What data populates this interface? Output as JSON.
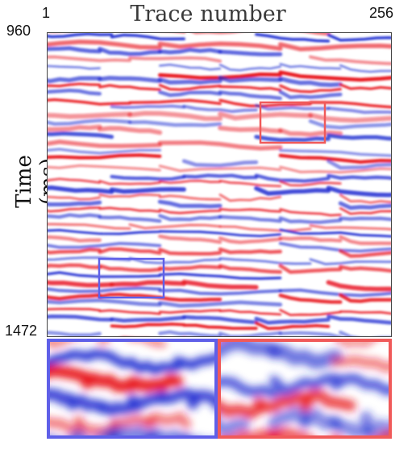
{
  "figure": {
    "title": "Trace number",
    "x_tick_start": "1",
    "x_tick_end": "256",
    "y_tick_top": "960",
    "y_tick_bottom": "1472",
    "ylabel": "Time (ms)"
  },
  "colors": {
    "positive": "#e8141e",
    "negative": "#1c2ad0",
    "blue_box": "#5f5fe8",
    "red_box": "#f05a5a"
  }
}
